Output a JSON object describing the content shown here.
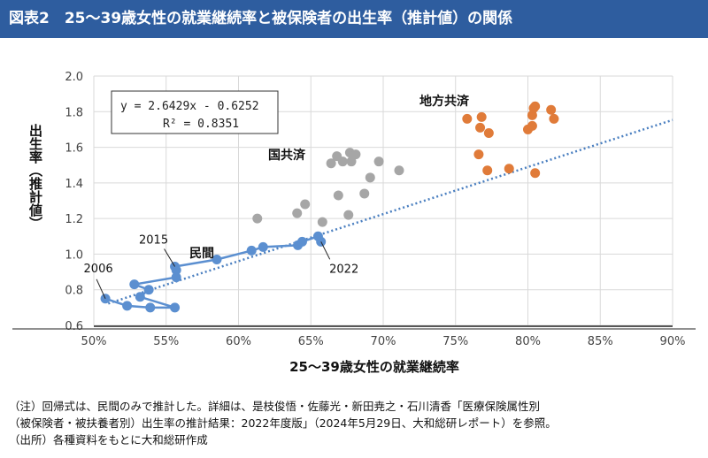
{
  "header": {
    "title": "図表2　25～39歳女性の就業継続率と被保険者の出生率（推計値）の関係"
  },
  "chart_data": {
    "type": "scatter",
    "title": "",
    "xlabel": "25～39歳女性の就業継続率",
    "ylabel": "出生率（推計値）",
    "xlim": [
      0.5,
      0.9
    ],
    "ylim": [
      0.6,
      2.0
    ],
    "x_ticks": [
      "50%",
      "55%",
      "60%",
      "65%",
      "70%",
      "75%",
      "80%",
      "85%",
      "90%"
    ],
    "y_ticks": [
      "0.6",
      "0.8",
      "1.0",
      "1.2",
      "1.4",
      "1.6",
      "1.8",
      "2.0"
    ],
    "grid": true,
    "regression": {
      "equation": "y = 2.6429x - 0.6252",
      "r2": "R² = 0.8351",
      "slope": 2.6429,
      "intercept": -0.6252,
      "color": "#4a7fc0"
    },
    "series": [
      {
        "name": "民間",
        "color": "#5b8fd0",
        "connected": true,
        "x": [
          0.508,
          0.523,
          0.539,
          0.556,
          0.532,
          0.538,
          0.528,
          0.557,
          0.557,
          0.556,
          0.585,
          0.609,
          0.617,
          0.641,
          0.644,
          0.655,
          0.657
        ],
        "y": [
          0.75,
          0.71,
          0.7,
          0.7,
          0.76,
          0.8,
          0.83,
          0.87,
          0.91,
          0.93,
          0.97,
          1.02,
          1.04,
          1.05,
          1.07,
          1.1,
          1.07
        ],
        "labels": [
          {
            "index": 0,
            "text": "2006"
          },
          {
            "index": 9,
            "text": "2015"
          },
          {
            "index": 16,
            "text": "2022"
          }
        ]
      },
      {
        "name": "国共済",
        "color": "#a6a6a6",
        "connected": false,
        "x": [
          0.613,
          0.6405,
          0.646,
          0.658,
          0.669,
          0.676,
          0.687,
          0.691,
          0.711,
          0.697,
          0.664,
          0.668,
          0.672,
          0.677,
          0.681,
          0.678
        ],
        "y": [
          1.2,
          1.23,
          1.28,
          1.18,
          1.33,
          1.22,
          1.34,
          1.43,
          1.47,
          1.52,
          1.51,
          1.55,
          1.52,
          1.57,
          1.56,
          1.52
        ]
      },
      {
        "name": "地方共済",
        "color": "#e07b39",
        "connected": false,
        "x": [
          0.758,
          0.768,
          0.767,
          0.773,
          0.766,
          0.772,
          0.787,
          0.8,
          0.803,
          0.803,
          0.804,
          0.805,
          0.816,
          0.818,
          0.805
        ],
        "y": [
          1.76,
          1.77,
          1.71,
          1.68,
          1.56,
          1.47,
          1.48,
          1.7,
          1.72,
          1.78,
          1.82,
          1.83,
          1.81,
          1.76,
          1.455
        ]
      }
    ]
  },
  "notes": [
    "（注）回帰式は、民間のみで推計した。詳細は、是枝俊悟・佐藤光・新田尭之・石川清香「医療保険属性別",
    "（被保険者・被扶養者別）出生率の推計結果：2022年度版」（2024年5月29日、大和総研レポート）を参照。",
    "（出所）各種資料をもとに大和総研作成"
  ]
}
